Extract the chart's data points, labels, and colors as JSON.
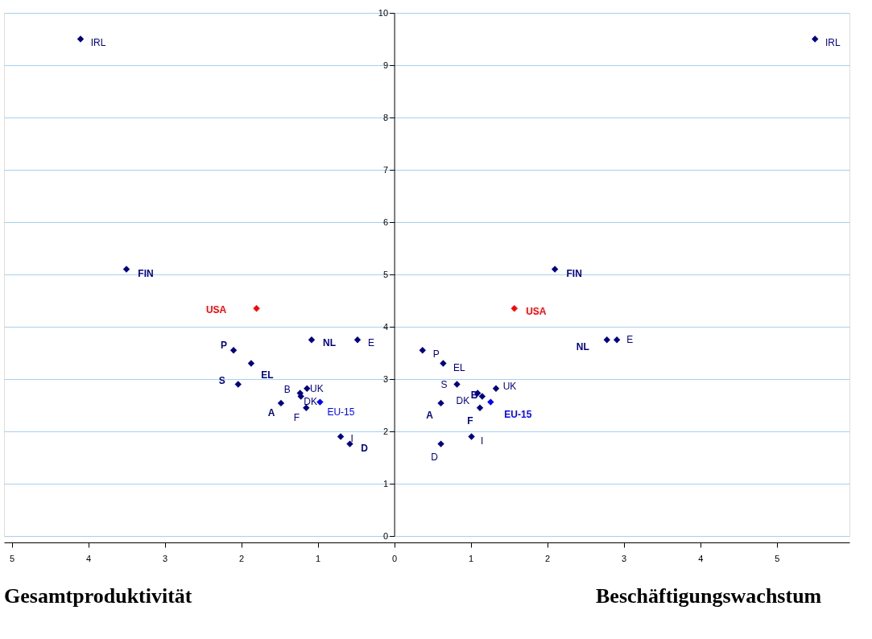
{
  "chart_data": {
    "type": "scatter",
    "xlim": [
      -5.1,
      5.95
    ],
    "ylim": [
      0,
      10
    ],
    "xticks": [
      {
        "value": -5,
        "label": "5"
      },
      {
        "value": -4,
        "label": "4"
      },
      {
        "value": -3,
        "label": "3"
      },
      {
        "value": -2,
        "label": "2"
      },
      {
        "value": -1,
        "label": "1"
      },
      0,
      1,
      2,
      3,
      4,
      5
    ],
    "yticks": [
      0,
      1,
      2,
      3,
      4,
      5,
      6,
      7,
      8,
      9,
      10
    ],
    "grid": "y",
    "marker": "diamond",
    "legend": false,
    "annotations": [
      "Gesamtproduktivität",
      "Beschäftigungswachstum"
    ],
    "series": [
      {
        "name": "IRL",
        "color": "#000080",
        "x": [
          -4.1,
          5.5
        ],
        "values": [
          9.5,
          9.5
        ]
      },
      {
        "name": "FIN",
        "color": "#000080",
        "x": [
          -3.5,
          2.1
        ],
        "values": [
          5.1,
          5.1
        ]
      },
      {
        "name": "USA",
        "color": "#ff0000",
        "x": [
          -1.8,
          1.57
        ],
        "values": [
          4.35,
          4.35
        ]
      },
      {
        "name": "NL",
        "color": "#000080",
        "x": [
          -1.08,
          2.78
        ],
        "values": [
          3.75,
          3.75
        ]
      },
      {
        "name": "E",
        "color": "#000080",
        "x": [
          -0.48,
          2.91
        ],
        "values": [
          3.75,
          3.75
        ]
      },
      {
        "name": "P",
        "color": "#000080",
        "x": [
          -2.1,
          0.37
        ],
        "values": [
          3.55,
          3.55
        ]
      },
      {
        "name": "EL",
        "color": "#000080",
        "x": [
          -1.87,
          0.64
        ],
        "values": [
          3.3,
          3.3
        ]
      },
      {
        "name": "S",
        "color": "#000080",
        "x": [
          -2.04,
          0.82
        ],
        "values": [
          2.9,
          2.9
        ]
      },
      {
        "name": "B",
        "color": "#000080",
        "x": [
          -1.23,
          1.09
        ],
        "values": [
          2.73,
          2.73
        ]
      },
      {
        "name": "UK",
        "color": "#000080",
        "x": [
          -1.14,
          1.33
        ],
        "values": [
          2.82,
          2.82
        ]
      },
      {
        "name": "DK",
        "color": "#000080",
        "x": [
          -1.22,
          1.15
        ],
        "values": [
          2.67,
          2.67
        ]
      },
      {
        "name": "EU-15",
        "color": "#0000ff",
        "x": [
          -0.97,
          1.26
        ],
        "values": [
          2.56,
          2.56
        ]
      },
      {
        "name": "A",
        "color": "#000080",
        "x": [
          -1.48,
          0.61
        ],
        "values": [
          2.54,
          2.54
        ]
      },
      {
        "name": "F",
        "color": "#000080",
        "x": [
          -1.15,
          1.12
        ],
        "values": [
          2.45,
          2.45
        ]
      },
      {
        "name": "I",
        "color": "#000080",
        "x": [
          -0.7,
          1.01
        ],
        "values": [
          1.9,
          1.9
        ]
      },
      {
        "name": "D",
        "color": "#000080",
        "x": [
          -0.58,
          0.61
        ],
        "values": [
          1.76,
          1.76
        ]
      }
    ]
  }
}
